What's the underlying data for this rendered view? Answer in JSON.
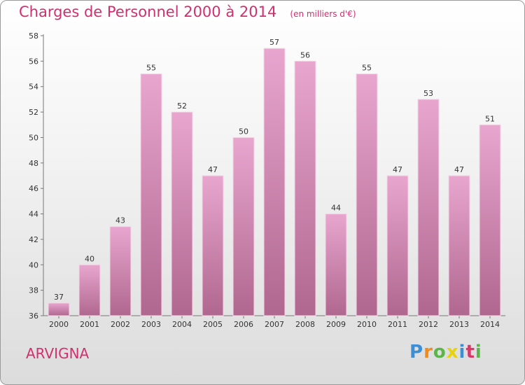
{
  "header": {
    "title": "Charges de Personnel 2000 à 2014",
    "subtitle": "(en milliers d'€)"
  },
  "footer": {
    "commune": "ARVIGNA",
    "logo": [
      "P",
      "r",
      "o",
      "x",
      "i",
      "t",
      "i"
    ]
  },
  "colors": {
    "title": "#d22f6f",
    "bar_top": "#e8a6cf",
    "bar_bottom": "#b0678f"
  },
  "chart_data": {
    "type": "bar",
    "title": "Charges de Personnel 2000 à 2014",
    "subtitle": "(en milliers d'€)",
    "categories": [
      "2000",
      "2001",
      "2002",
      "2003",
      "2004",
      "2005",
      "2006",
      "2007",
      "2008",
      "2009",
      "2010",
      "2011",
      "2012",
      "2013",
      "2014"
    ],
    "values": [
      37,
      40,
      43,
      55,
      52,
      47,
      50,
      57,
      56,
      44,
      55,
      47,
      53,
      47,
      51
    ],
    "ylim": [
      36,
      58
    ],
    "yticks": [
      36,
      38,
      40,
      42,
      44,
      46,
      48,
      50,
      52,
      54,
      56,
      58
    ],
    "grid": false,
    "legend": "none"
  }
}
